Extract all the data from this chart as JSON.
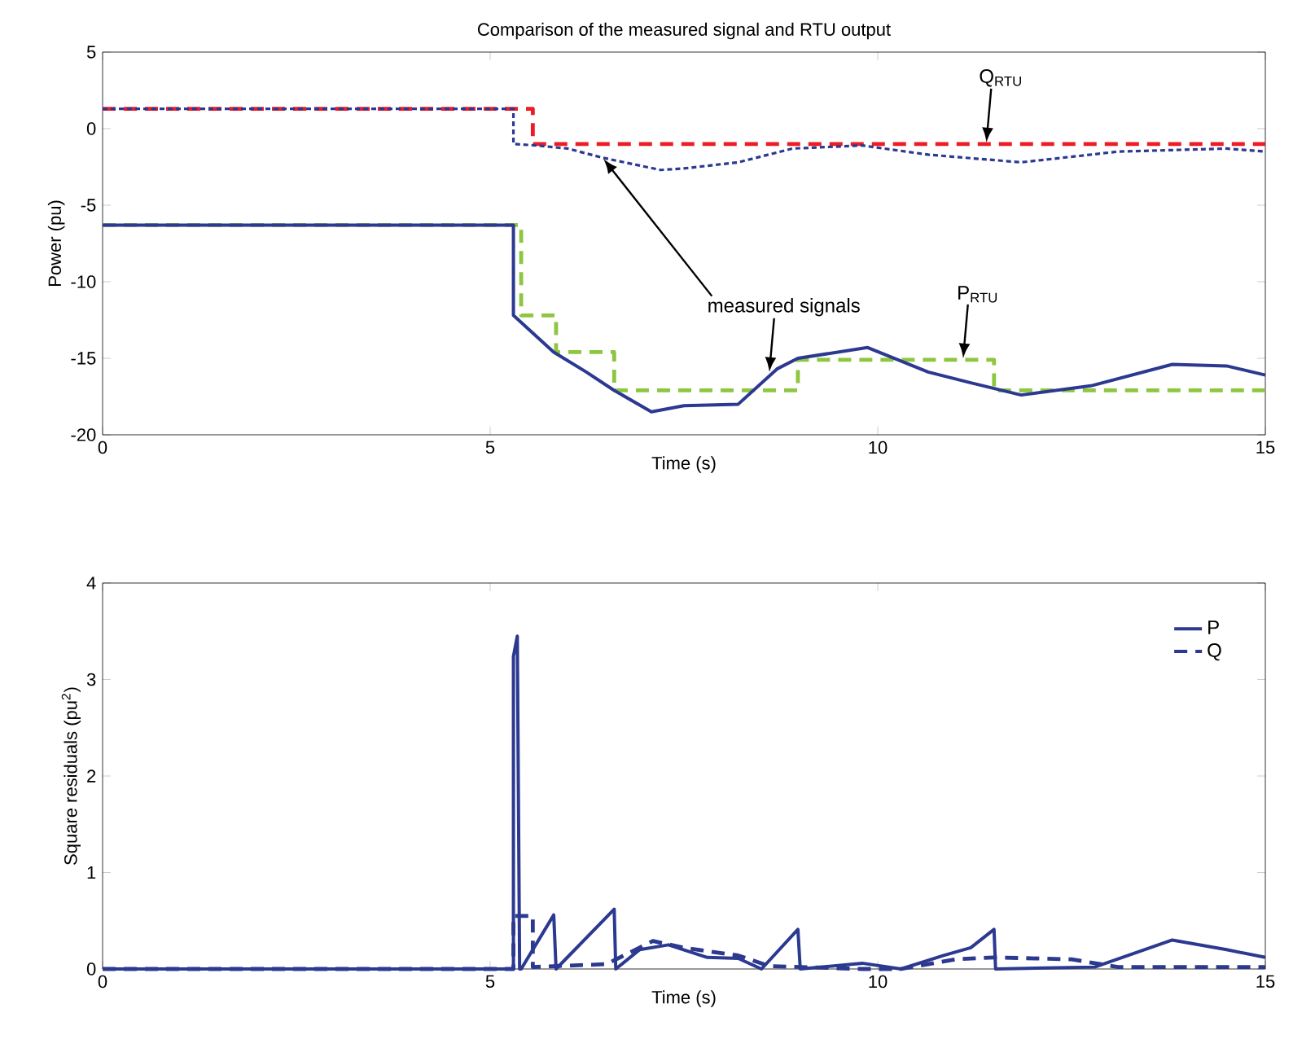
{
  "chart_data": [
    {
      "type": "line",
      "title": "Comparison of the measured signal and RTU output",
      "xlabel": "Time (s)",
      "ylabel": "Power (pu)",
      "xlim": [
        0,
        15
      ],
      "ylim": [
        -20,
        5
      ],
      "xticks": [
        0,
        5,
        10,
        15
      ],
      "yticks": [
        -20,
        -15,
        -10,
        -5,
        0,
        5
      ],
      "grid": false,
      "series": [
        {
          "color": "#ed1c24",
          "line_style": "dashed",
          "x": [
            0,
            5.55,
            5.55,
            15
          ],
          "values": [
            1.3,
            1.3,
            -1.0,
            -1.0
          ]
        },
        {
          "color": "#2b3990",
          "line_style": "dotted",
          "x": [
            0,
            5.3,
            5.3,
            5.6,
            6.0,
            6.45,
            7.2,
            7.5,
            8.2,
            8.9,
            9.8,
            10.65,
            11.85,
            13.1,
            14.5,
            15
          ],
          "values": [
            1.3,
            1.3,
            -1.0,
            -1.1,
            -1.3,
            -1.9,
            -2.7,
            -2.6,
            -2.2,
            -1.3,
            -1.1,
            -1.7,
            -2.2,
            -1.5,
            -1.3,
            -1.5
          ]
        },
        {
          "color": "#8dc63f",
          "line_style": "dashed",
          "x": [
            0,
            5.4,
            5.4,
            5.85,
            5.85,
            6.6,
            6.6,
            8.97,
            8.97,
            11.5,
            11.5,
            15
          ],
          "values": [
            -6.3,
            -6.3,
            -12.2,
            -12.2,
            -14.6,
            -14.6,
            -17.1,
            -17.1,
            -15.1,
            -15.1,
            -17.1,
            -17.1
          ]
        },
        {
          "color": "#2b3990",
          "line_style": "solid",
          "x": [
            0,
            5.3,
            5.3,
            5.82,
            6.24,
            6.6,
            7.08,
            7.5,
            8.2,
            8.7,
            8.97,
            9.87,
            10.65,
            11.2,
            11.85,
            12.75,
            13.8,
            14.5,
            15
          ],
          "values": [
            -6.3,
            -6.3,
            -12.2,
            -14.6,
            -15.9,
            -17.1,
            -18.5,
            -18.1,
            -18.0,
            -15.7,
            -15.0,
            -14.3,
            -15.9,
            -16.6,
            -17.4,
            -16.8,
            -15.4,
            -15.5,
            -16.1
          ]
        }
      ],
      "annotations": [
        {
          "text": "Q$_{RTU}$",
          "x": 11.4,
          "y": -1.0
        },
        {
          "text": "P$_{RTU}$",
          "x": 11.1,
          "y": -15.1
        },
        {
          "text": "measured signals",
          "x": 8.6,
          "y": -16.0
        }
      ]
    },
    {
      "type": "line",
      "xlabel": "Time (s)",
      "ylabel": "Square residuals (pu$^{2}$)",
      "xlim": [
        0,
        15
      ],
      "ylim": [
        0,
        4
      ],
      "xticks": [
        0,
        5,
        10,
        15
      ],
      "yticks": [
        0,
        1,
        2,
        3,
        4
      ],
      "grid": false,
      "legend": "top right",
      "series": [
        {
          "name": "P",
          "color": "#2b3990",
          "line_style": "solid",
          "x": [
            0,
            5.3,
            5.3,
            5.35,
            5.38,
            5.4,
            5.82,
            5.85,
            6.6,
            6.62,
            6.93,
            7.3,
            7.8,
            8.2,
            8.5,
            8.97,
            9.0,
            9.8,
            10.3,
            10.85,
            11.2,
            11.5,
            11.52,
            12.8,
            13.8,
            14.5,
            15
          ],
          "values": [
            0,
            0,
            3.24,
            3.45,
            0,
            0,
            0.56,
            0,
            0.62,
            0,
            0.2,
            0.25,
            0.12,
            0.11,
            0,
            0.41,
            0,
            0.06,
            0,
            0.14,
            0.22,
            0.41,
            0,
            0.02,
            0.3,
            0.2,
            0.12
          ]
        },
        {
          "name": "Q",
          "color": "#2b3990",
          "line_style": "dashed",
          "x": [
            0,
            5.3,
            5.3,
            5.55,
            5.55,
            6.5,
            7.1,
            7.5,
            8.2,
            8.6,
            9.8,
            10.3,
            11.0,
            11.5,
            12.5,
            13.1,
            15
          ],
          "values": [
            0,
            0,
            0.55,
            0.55,
            0.02,
            0.05,
            0.29,
            0.22,
            0.14,
            0.03,
            0,
            0,
            0.1,
            0.12,
            0.1,
            0.02,
            0.02
          ]
        }
      ]
    }
  ]
}
